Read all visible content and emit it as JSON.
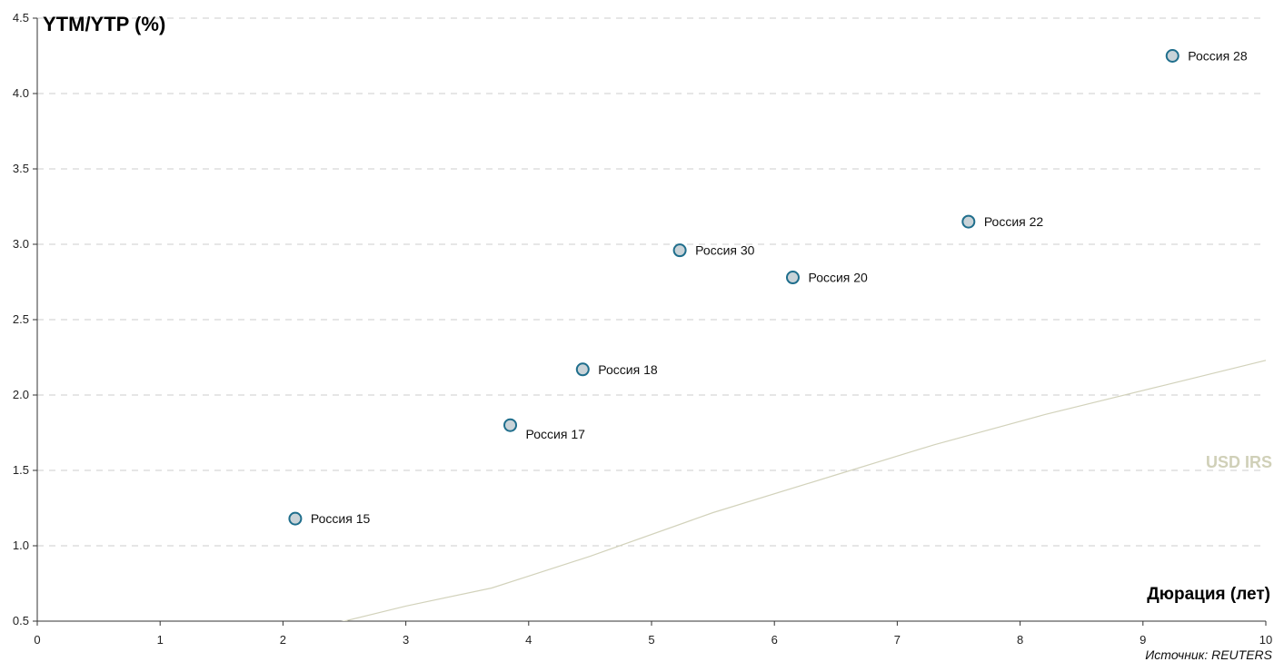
{
  "chart_data": {
    "type": "scatter",
    "title": "YTM/YTP (%)",
    "xlabel": "Дюрация (лет)",
    "source": "Источник: REUTERS",
    "xlim": [
      0,
      10
    ],
    "ylim": [
      0.5,
      4.5
    ],
    "x_ticks": [
      "0",
      "1",
      "2",
      "3",
      "4",
      "5",
      "6",
      "7",
      "8",
      "9",
      "10"
    ],
    "y_ticks": [
      "0.5",
      "1.0",
      "1.5",
      "2.0",
      "2.5",
      "3.0",
      "3.5",
      "4.0",
      "4.5"
    ],
    "grid": true,
    "colors": {
      "marker_fill": "#c9d3d8",
      "marker_stroke": "#1f6e8c",
      "grid": "#cccccc",
      "line": "#d2d2bb",
      "line_label": "#d0d0b8"
    },
    "points": [
      {
        "label": "Россия 15",
        "x": 2.1,
        "y": 1.18
      },
      {
        "label": "Россия 17",
        "x": 3.85,
        "y": 1.8
      },
      {
        "label": "Россия 18",
        "x": 4.44,
        "y": 2.17
      },
      {
        "label": "Россия 30",
        "x": 5.23,
        "y": 2.96
      },
      {
        "label": "Россия 20",
        "x": 6.15,
        "y": 2.78
      },
      {
        "label": "Россия 22",
        "x": 7.58,
        "y": 3.15
      },
      {
        "label": "Россия 28",
        "x": 9.24,
        "y": 4.25
      }
    ],
    "line_series": {
      "name": "USD IRS",
      "x": [
        2.1,
        2.5,
        3.0,
        3.7,
        4.5,
        5.5,
        6.5,
        7.3,
        8.2,
        9.2,
        10.0
      ],
      "y": [
        0.45,
        0.5,
        0.6,
        0.72,
        0.93,
        1.22,
        1.47,
        1.67,
        1.87,
        2.07,
        2.23
      ]
    }
  }
}
